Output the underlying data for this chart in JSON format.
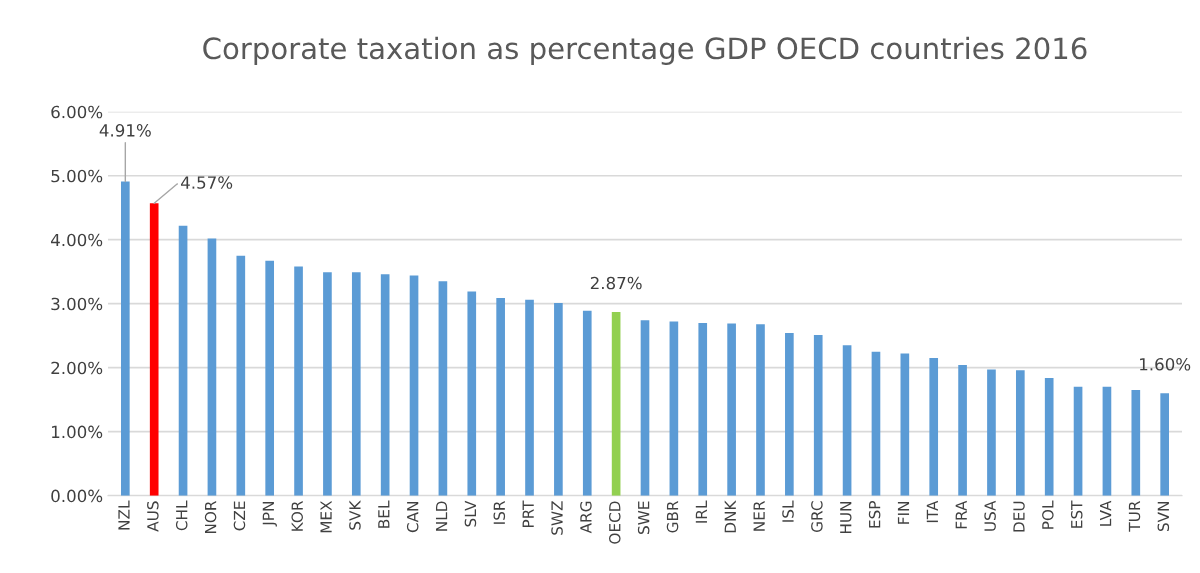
{
  "chart_data": {
    "type": "bar",
    "title": "Corporate taxation as percentage GDP OECD countries 2016",
    "categories": [
      "NZL",
      "AUS",
      "CHL",
      "NOR",
      "CZE",
      "JPN",
      "KOR",
      "MEX",
      "SVK",
      "BEL",
      "CAN",
      "NLD",
      "SLV",
      "ISR",
      "PRT",
      "SWZ",
      "ARG",
      "OECD",
      "SWE",
      "GBR",
      "IRL",
      "DNK",
      "NER",
      "ISL",
      "GRC",
      "HUN",
      "ESP",
      "FIN",
      "ITA",
      "FRA",
      "USA",
      "DEU",
      "POL",
      "EST",
      "LVA",
      "TUR",
      "SVN"
    ],
    "values": [
      4.91,
      4.57,
      4.22,
      4.02,
      3.75,
      3.67,
      3.58,
      3.49,
      3.49,
      3.46,
      3.44,
      3.35,
      3.19,
      3.09,
      3.06,
      3.01,
      2.89,
      2.87,
      2.74,
      2.72,
      2.7,
      2.69,
      2.68,
      2.54,
      2.51,
      2.35,
      2.25,
      2.22,
      2.15,
      2.04,
      1.97,
      1.96,
      1.84,
      1.7,
      1.7,
      1.65,
      1.6
    ],
    "colors": [
      "#5b9bd5",
      "#ff0000",
      "#5b9bd5",
      "#5b9bd5",
      "#5b9bd5",
      "#5b9bd5",
      "#5b9bd5",
      "#5b9bd5",
      "#5b9bd5",
      "#5b9bd5",
      "#5b9bd5",
      "#5b9bd5",
      "#5b9bd5",
      "#5b9bd5",
      "#5b9bd5",
      "#5b9bd5",
      "#5b9bd5",
      "#92d050",
      "#5b9bd5",
      "#5b9bd5",
      "#5b9bd5",
      "#5b9bd5",
      "#5b9bd5",
      "#5b9bd5",
      "#5b9bd5",
      "#5b9bd5",
      "#5b9bd5",
      "#5b9bd5",
      "#5b9bd5",
      "#5b9bd5",
      "#5b9bd5",
      "#5b9bd5",
      "#5b9bd5",
      "#5b9bd5",
      "#5b9bd5",
      "#5b9bd5",
      "#5b9bd5"
    ],
    "value_labels": [
      "4.91%",
      "4.57%",
      null,
      null,
      null,
      null,
      null,
      null,
      null,
      null,
      null,
      null,
      null,
      null,
      null,
      null,
      null,
      "2.87%",
      null,
      null,
      null,
      null,
      null,
      null,
      null,
      null,
      null,
      null,
      null,
      null,
      null,
      null,
      null,
      null,
      null,
      null,
      "1.60%"
    ],
    "ylim": [
      0,
      6
    ],
    "yticks": [
      {
        "value": 0,
        "label": "0.00%"
      },
      {
        "value": 1,
        "label": "1.00%"
      },
      {
        "value": 2,
        "label": "2.00%"
      },
      {
        "value": 3,
        "label": "3.00%"
      },
      {
        "value": 4,
        "label": "4.00%"
      },
      {
        "value": 5,
        "label": "5.00%"
      },
      {
        "value": 6,
        "label": "6.00%"
      }
    ],
    "grid": "y"
  }
}
